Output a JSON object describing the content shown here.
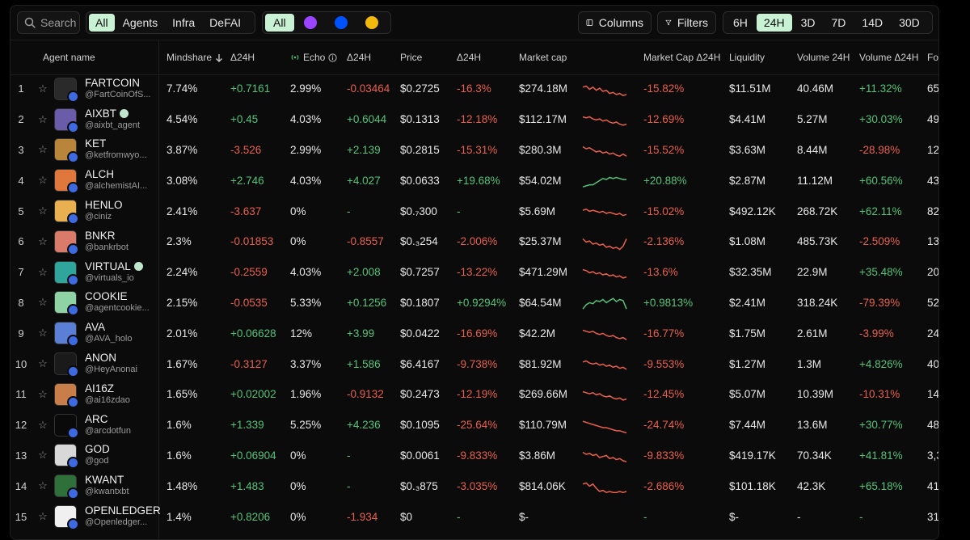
{
  "search": {
    "placeholder": "Search"
  },
  "categories": [
    {
      "label": "All",
      "active": true
    },
    {
      "label": "Agents",
      "active": false
    },
    {
      "label": "Infra",
      "active": false
    },
    {
      "label": "DeFAI",
      "active": false
    }
  ],
  "chains": {
    "all_label": "All",
    "icons": [
      {
        "name": "solana-chain-icon",
        "color": "#9945ff"
      },
      {
        "name": "base-chain-icon",
        "color": "#0052ff"
      },
      {
        "name": "bnb-chain-icon",
        "color": "#f0b90b"
      }
    ]
  },
  "toolbar": {
    "columns_label": "Columns",
    "filters_label": "Filters"
  },
  "timeframes": [
    {
      "label": "6H",
      "active": false
    },
    {
      "label": "24H",
      "active": true
    },
    {
      "label": "3D",
      "active": false
    },
    {
      "label": "7D",
      "active": false
    },
    {
      "label": "14D",
      "active": false
    },
    {
      "label": "30D",
      "active": false
    }
  ],
  "headers": {
    "agent_name": "Agent name",
    "mindshare": "Mindshare",
    "mindshare_delta": "Δ24H",
    "echo": "Echo",
    "echo_delta": "Δ24H",
    "price": "Price",
    "price_delta": "Δ24H",
    "market_cap": "Market cap",
    "market_cap_delta": "Market Cap Δ24H",
    "liquidity": "Liquidity",
    "volume": "Volume 24H",
    "volume_delta": "Volume Δ24H",
    "followers": "Fo"
  },
  "colors": {
    "positive": "#54c27b",
    "negative": "#e8604c",
    "accent": "#c9f2d4"
  },
  "rows": [
    {
      "rank": "1",
      "name": "FARTCOIN",
      "handle": "@FartCoinOfS...",
      "verified": false,
      "avatar": "#2a2a2a",
      "mindshare": "7.74%",
      "mindshare_delta": "+0.7161",
      "echo": "2.99%",
      "echo_delta": "-0.03464",
      "price": "$0.2725",
      "price_delta": "-16.3%",
      "market_cap": "$274.18M",
      "market_cap_delta": "-15.82%",
      "liquidity": "$11.51M",
      "volume": "40.46M",
      "volume_delta": "+11.32%",
      "followers": "65",
      "trend": "down",
      "spark": [
        6,
        5,
        8,
        6,
        9,
        7,
        10,
        9,
        12,
        11,
        13,
        12,
        14,
        13
      ]
    },
    {
      "rank": "2",
      "name": "AIXBT",
      "handle": "@aixbt_agent",
      "verified": true,
      "avatar": "#6a5ca8",
      "mindshare": "4.54%",
      "mindshare_delta": "+0.45",
      "echo": "4.03%",
      "echo_delta": "+0.6044",
      "price": "$0.1313",
      "price_delta": "-12.18%",
      "market_cap": "$112.17M",
      "market_cap_delta": "-12.69%",
      "liquidity": "$4.41M",
      "volume": "5.27M",
      "volume_delta": "+30.03%",
      "followers": "49",
      "trend": "down",
      "spark": [
        5,
        6,
        5,
        7,
        8,
        7,
        9,
        8,
        10,
        11,
        10,
        12,
        13,
        12
      ]
    },
    {
      "rank": "3",
      "name": "KET",
      "handle": "@ketfromwyo...",
      "verified": false,
      "avatar": "#b8853a",
      "mindshare": "3.87%",
      "mindshare_delta": "-3.526",
      "echo": "2.99%",
      "echo_delta": "+2.139",
      "price": "$0.2815",
      "price_delta": "-15.31%",
      "market_cap": "$280.3M",
      "market_cap_delta": "-15.52%",
      "liquidity": "$3.63M",
      "volume": "8.44M",
      "volume_delta": "-28.98%",
      "followers": "12",
      "trend": "down",
      "spark": [
        5,
        7,
        6,
        8,
        10,
        9,
        11,
        10,
        12,
        11,
        13,
        14,
        12,
        14
      ]
    },
    {
      "rank": "4",
      "name": "ALCH",
      "handle": "@alchemistAI...",
      "verified": false,
      "avatar": "#e0773c",
      "mindshare": "3.08%",
      "mindshare_delta": "+2.746",
      "echo": "4.03%",
      "echo_delta": "+4.027",
      "price": "$0.0633",
      "price_delta": "+19.68%",
      "market_cap": "$54.02M",
      "market_cap_delta": "+20.88%",
      "liquidity": "$2.87M",
      "volume": "11.12M",
      "volume_delta": "+60.56%",
      "followers": "43",
      "trend": "up",
      "spark": [
        14,
        13,
        12,
        12,
        10,
        8,
        6,
        7,
        5,
        6,
        5,
        6,
        7,
        7
      ]
    },
    {
      "rank": "5",
      "name": "HENLO",
      "handle": "@ciniz",
      "verified": false,
      "avatar": "#e8b050",
      "mindshare": "2.41%",
      "mindshare_delta": "-3.637",
      "echo": "0%",
      "echo_delta": "-",
      "price": "$0.₇300",
      "price_delta": "-",
      "market_cap": "$5.69M",
      "market_cap_delta": "-15.02%",
      "liquidity": "$492.12K",
      "volume": "268.72K",
      "volume_delta": "+62.11%",
      "followers": "82",
      "trend": "down",
      "spark": [
        7,
        6,
        8,
        7,
        8,
        9,
        8,
        10,
        9,
        10,
        11,
        10,
        12,
        11
      ]
    },
    {
      "rank": "6",
      "name": "BNKR",
      "handle": "@bankrbot",
      "verified": false,
      "avatar": "#d97a6a",
      "mindshare": "2.3%",
      "mindshare_delta": "-0.01853",
      "echo": "0%",
      "echo_delta": "-0.8557",
      "price": "$0.₃254",
      "price_delta": "-2.006%",
      "market_cap": "$25.37M",
      "market_cap_delta": "-2.136%",
      "liquidity": "$1.08M",
      "volume": "485.73K",
      "volume_delta": "-2.509%",
      "followers": "13",
      "trend": "down",
      "spark": [
        5,
        8,
        7,
        10,
        9,
        11,
        10,
        13,
        12,
        14,
        13,
        15,
        12,
        5
      ]
    },
    {
      "rank": "7",
      "name": "VIRTUAL",
      "handle": "@virtuals_io",
      "verified": true,
      "avatar": "#2fa59c",
      "mindshare": "2.24%",
      "mindshare_delta": "-0.2559",
      "echo": "4.03%",
      "echo_delta": "+2.008",
      "price": "$0.7257",
      "price_delta": "-13.22%",
      "market_cap": "$471.29M",
      "market_cap_delta": "-13.6%",
      "liquidity": "$32.35M",
      "volume": "22.9M",
      "volume_delta": "+35.48%",
      "followers": "20",
      "trend": "down",
      "spark": [
        5,
        6,
        8,
        7,
        9,
        8,
        10,
        9,
        11,
        10,
        12,
        11,
        13,
        12
      ]
    },
    {
      "rank": "8",
      "name": "COOKIE",
      "handle": "@agentcookie...",
      "verified": false,
      "avatar": "#8fd3a4",
      "mindshare": "2.15%",
      "mindshare_delta": "-0.0535",
      "echo": "5.33%",
      "echo_delta": "+0.1256",
      "price": "$0.1807",
      "price_delta": "+0.9294%",
      "market_cap": "$64.54M",
      "market_cap_delta": "+0.9813%",
      "liquidity": "$2.41M",
      "volume": "318.24K",
      "volume_delta": "-79.39%",
      "followers": "52",
      "trend": "up",
      "spark": [
        14,
        10,
        8,
        9,
        6,
        7,
        5,
        8,
        6,
        4,
        7,
        5,
        6,
        14
      ]
    },
    {
      "rank": "9",
      "name": "AVA",
      "handle": "@AVA_holo",
      "verified": false,
      "avatar": "#5b7fd6",
      "mindshare": "2.01%",
      "mindshare_delta": "+0.06628",
      "echo": "12%",
      "echo_delta": "+3.99",
      "price": "$0.0422",
      "price_delta": "-16.69%",
      "market_cap": "$42.2M",
      "market_cap_delta": "-16.77%",
      "liquidity": "$1.75M",
      "volume": "2.61M",
      "volume_delta": "-3.99%",
      "followers": "24",
      "trend": "down",
      "spark": [
        5,
        6,
        7,
        6,
        8,
        9,
        8,
        10,
        11,
        10,
        12,
        13,
        12,
        14
      ]
    },
    {
      "rank": "10",
      "name": "ANON",
      "handle": "@HeyAnonai",
      "verified": false,
      "avatar": "#1a1a1a",
      "mindshare": "1.67%",
      "mindshare_delta": "-0.3127",
      "echo": "3.37%",
      "echo_delta": "+1.586",
      "price": "$6.4167",
      "price_delta": "-9.738%",
      "market_cap": "$81.92M",
      "market_cap_delta": "-9.553%",
      "liquidity": "$1.27M",
      "volume": "1.3M",
      "volume_delta": "+4.826%",
      "followers": "40",
      "trend": "down",
      "spark": [
        6,
        5,
        7,
        8,
        7,
        9,
        8,
        10,
        9,
        11,
        10,
        12,
        11,
        13
      ]
    },
    {
      "rank": "11",
      "name": "AI16Z",
      "handle": "@ai16zdao",
      "verified": false,
      "avatar": "#c97e4a",
      "mindshare": "1.65%",
      "mindshare_delta": "+0.02002",
      "echo": "1.96%",
      "echo_delta": "-0.9132",
      "price": "$0.2473",
      "price_delta": "-12.19%",
      "market_cap": "$269.66M",
      "market_cap_delta": "-12.45%",
      "liquidity": "$5.07M",
      "volume": "10.39M",
      "volume_delta": "-10.31%",
      "followers": "14",
      "trend": "down",
      "spark": [
        5,
        6,
        7,
        6,
        8,
        7,
        9,
        10,
        9,
        11,
        12,
        11,
        13,
        12
      ]
    },
    {
      "rank": "12",
      "name": "ARC",
      "handle": "@arcdotfun",
      "verified": false,
      "avatar": "#0a0a0a",
      "mindshare": "1.6%",
      "mindshare_delta": "+1.339",
      "echo": "5.25%",
      "echo_delta": "+4.236",
      "price": "$0.1095",
      "price_delta": "-25.64%",
      "market_cap": "$110.79M",
      "market_cap_delta": "-24.74%",
      "liquidity": "$7.44M",
      "volume": "13.6M",
      "volume_delta": "+30.77%",
      "followers": "48",
      "trend": "down",
      "spark": [
        4,
        5,
        6,
        7,
        8,
        9,
        10,
        10,
        11,
        12,
        13,
        13,
        14,
        15
      ]
    },
    {
      "rank": "13",
      "name": "GOD",
      "handle": "@god",
      "verified": false,
      "avatar": "#d8d8d8",
      "mindshare": "1.6%",
      "mindshare_delta": "+0.06904",
      "echo": "0%",
      "echo_delta": "-",
      "price": "$0.0061",
      "price_delta": "-9.833%",
      "market_cap": "$3.86M",
      "market_cap_delta": "-9.833%",
      "liquidity": "$419.17K",
      "volume": "70.34K",
      "volume_delta": "+41.81%",
      "followers": "3,3",
      "trend": "down",
      "spark": [
        5,
        7,
        6,
        8,
        7,
        10,
        9,
        8,
        11,
        10,
        12,
        11,
        13,
        14
      ]
    },
    {
      "rank": "14",
      "name": "KWANT",
      "handle": "@kwantxbt",
      "verified": false,
      "avatar": "#2f6f3a",
      "mindshare": "1.48%",
      "mindshare_delta": "+1.483",
      "echo": "0%",
      "echo_delta": "-",
      "price": "$0.₃875",
      "price_delta": "-3.035%",
      "market_cap": "$814.06K",
      "market_cap_delta": "-2.686%",
      "liquidity": "$101.18K",
      "volume": "42.3K",
      "volume_delta": "+65.18%",
      "followers": "41",
      "trend": "down",
      "spark": [
        6,
        5,
        8,
        6,
        10,
        13,
        12,
        14,
        13,
        14,
        14,
        13,
        14,
        13
      ]
    },
    {
      "rank": "15",
      "name": "OPENLEDGER",
      "handle": "@Openledger...",
      "verified": false,
      "avatar": "#f0f0f0",
      "mindshare": "1.4%",
      "mindshare_delta": "+0.8206",
      "echo": "0%",
      "echo_delta": "-1.934",
      "price": "$0",
      "price_delta": "-",
      "market_cap": "$-",
      "market_cap_delta": "-",
      "liquidity": "$-",
      "volume": "-",
      "volume_delta": "-",
      "followers": "31",
      "trend": "none",
      "spark": []
    }
  ]
}
